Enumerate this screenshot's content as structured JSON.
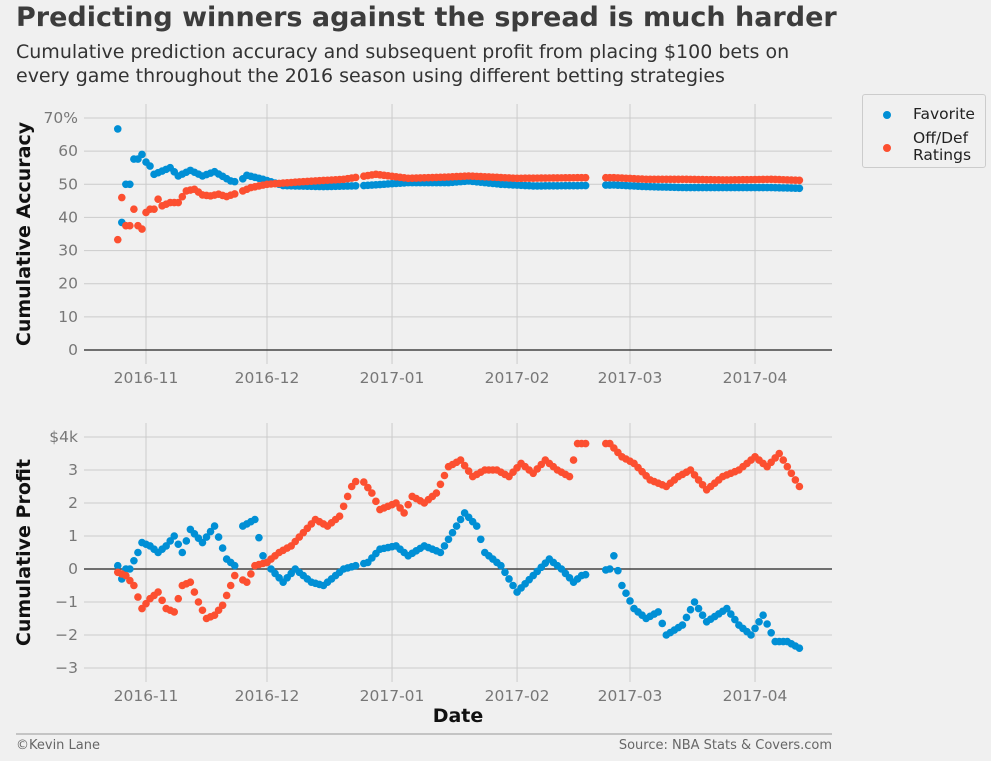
{
  "title": "Predicting winners against the spread is much harder",
  "subtitle": "Cumulative prediction accuracy and subsequent profit from placing $100 bets on every game throughout the 2016 season using different betting strategies",
  "footer": {
    "credit": "©Kevin Lane",
    "source": "Source: NBA Stats & Covers.com"
  },
  "colors": {
    "favorite": "#008fd5",
    "offdef": "#fc4f30",
    "grid": "#cbcbcb",
    "background": "#f0f0f0"
  },
  "legend": {
    "favorite": "Favorite",
    "offdef_line1": "Off/Def",
    "offdef_line2": "Ratings"
  },
  "chart_data": [
    {
      "type": "scatter",
      "ylabel": "Cumulative Accuracy",
      "ylim": [
        0,
        70
      ],
      "yticks": [
        "0",
        "10",
        "20",
        "30",
        "40",
        "50",
        "60",
        "70%"
      ],
      "xticks": [
        "2016-11",
        "2016-12",
        "2017-01",
        "2017-02",
        "2017-03",
        "2017-04"
      ],
      "grid": true,
      "legend_placement": "outside top-right",
      "series": [
        {
          "name": "Favorite",
          "anchors": [
            [
              "2016-10-25",
              66.7
            ],
            [
              "2016-10-26",
              38.5
            ],
            [
              "2016-10-27",
              50
            ],
            [
              "2016-10-28",
              50
            ],
            [
              "2016-10-29",
              57.6
            ],
            [
              "2016-10-30",
              57.6
            ],
            [
              "2016-10-31",
              59
            ],
            [
              "2016-11-01",
              56.7
            ],
            [
              "2016-11-02",
              55.5
            ],
            [
              "2016-11-03",
              53
            ],
            [
              "2016-11-05",
              54
            ],
            [
              "2016-11-07",
              55
            ],
            [
              "2016-11-09",
              52.5
            ],
            [
              "2016-11-12",
              54.2
            ],
            [
              "2016-11-15",
              52.5
            ],
            [
              "2016-11-18",
              53.8
            ],
            [
              "2016-11-22",
              51
            ],
            [
              "2016-11-24",
              50.6
            ],
            [
              "2016-11-26",
              52.7
            ],
            [
              "2016-11-30",
              51.5
            ],
            [
              "2016-12-05",
              49.6
            ],
            [
              "2016-12-15",
              49.3
            ],
            [
              "2016-12-25",
              49.6
            ],
            [
              "2017-01-05",
              50.5
            ],
            [
              "2017-01-15",
              50.5
            ],
            [
              "2017-01-20",
              51
            ],
            [
              "2017-01-28",
              50
            ],
            [
              "2017-02-05",
              49.5
            ],
            [
              "2017-02-17",
              49.6
            ],
            [
              "2017-02-25",
              49.8
            ],
            [
              "2017-03-05",
              49.3
            ],
            [
              "2017-03-15",
              49
            ],
            [
              "2017-03-25",
              49
            ],
            [
              "2017-04-05",
              49
            ],
            [
              "2017-04-12",
              48.8
            ]
          ]
        },
        {
          "name": "Off/Def Ratings",
          "anchors": [
            [
              "2016-10-25",
              33.3
            ],
            [
              "2016-10-26",
              46
            ],
            [
              "2016-10-27",
              37.5
            ],
            [
              "2016-10-28",
              37.5
            ],
            [
              "2016-10-29",
              42.5
            ],
            [
              "2016-10-30",
              37.5
            ],
            [
              "2016-10-31",
              36.5
            ],
            [
              "2016-11-01",
              41.5
            ],
            [
              "2016-11-02",
              42.5
            ],
            [
              "2016-11-03",
              42.5
            ],
            [
              "2016-11-04",
              45.5
            ],
            [
              "2016-11-05",
              43.5
            ],
            [
              "2016-11-07",
              44.5
            ],
            [
              "2016-11-09",
              44.5
            ],
            [
              "2016-11-11",
              48
            ],
            [
              "2016-11-13",
              48.5
            ],
            [
              "2016-11-15",
              46.8
            ],
            [
              "2016-11-17",
              46.5
            ],
            [
              "2016-11-19",
              47
            ],
            [
              "2016-11-21",
              46.3
            ],
            [
              "2016-11-24",
              47.5
            ],
            [
              "2016-11-27",
              49
            ],
            [
              "2016-12-01",
              50
            ],
            [
              "2016-12-10",
              50.8
            ],
            [
              "2016-12-20",
              51.5
            ],
            [
              "2016-12-28",
              53
            ],
            [
              "2017-01-05",
              51.8
            ],
            [
              "2017-01-15",
              52.2
            ],
            [
              "2017-01-20",
              52.5
            ],
            [
              "2017-02-01",
              51.8
            ],
            [
              "2017-02-17",
              52
            ],
            [
              "2017-02-25",
              52
            ],
            [
              "2017-03-05",
              51.5
            ],
            [
              "2017-03-15",
              51.5
            ],
            [
              "2017-03-25",
              51.3
            ],
            [
              "2017-04-05",
              51.5
            ],
            [
              "2017-04-12",
              51.2
            ]
          ]
        }
      ]
    },
    {
      "type": "scatter",
      "xlabel": "Date",
      "ylabel": "Cumulative Profit",
      "ylim": [
        -3.4,
        4.5
      ],
      "yticks": [
        "−3",
        "−2",
        "−1",
        "0",
        "1",
        "2",
        "3",
        "$4k"
      ],
      "xticks": [
        "2016-11",
        "2016-12",
        "2017-01",
        "2017-02",
        "2017-03",
        "2017-04"
      ],
      "grid": true,
      "series": [
        {
          "name": "Favorite",
          "anchors": [
            [
              "2016-10-25",
              0.1
            ],
            [
              "2016-10-26",
              -0.3
            ],
            [
              "2016-10-27",
              0
            ],
            [
              "2016-10-28",
              0
            ],
            [
              "2016-10-30",
              0.5
            ],
            [
              "2016-10-31",
              0.8
            ],
            [
              "2016-11-02",
              0.7
            ],
            [
              "2016-11-04",
              0.5
            ],
            [
              "2016-11-06",
              0.7
            ],
            [
              "2016-11-08",
              1
            ],
            [
              "2016-11-10",
              0.5
            ],
            [
              "2016-11-12",
              1.2
            ],
            [
              "2016-11-15",
              0.8
            ],
            [
              "2016-11-18",
              1.3
            ],
            [
              "2016-11-21",
              0.3
            ],
            [
              "2016-11-23",
              0.1
            ],
            [
              "2016-11-25",
              1.3
            ],
            [
              "2016-11-28",
              1.5
            ],
            [
              "2016-11-30",
              0.4
            ],
            [
              "2016-12-02",
              0
            ],
            [
              "2016-12-05",
              -0.4
            ],
            [
              "2016-12-08",
              0
            ],
            [
              "2016-12-12",
              -0.4
            ],
            [
              "2016-12-15",
              -0.5
            ],
            [
              "2016-12-20",
              0
            ],
            [
              "2016-12-26",
              0.2
            ],
            [
              "2016-12-29",
              0.6
            ],
            [
              "2017-01-02",
              0.7
            ],
            [
              "2017-01-05",
              0.4
            ],
            [
              "2017-01-09",
              0.7
            ],
            [
              "2017-01-13",
              0.5
            ],
            [
              "2017-01-16",
              1.1
            ],
            [
              "2017-01-19",
              1.7
            ],
            [
              "2017-01-22",
              1.3
            ],
            [
              "2017-01-24",
              0.5
            ],
            [
              "2017-01-28",
              0.1
            ],
            [
              "2017-02-01",
              -0.7
            ],
            [
              "2017-02-05",
              -0.2
            ],
            [
              "2017-02-09",
              0.3
            ],
            [
              "2017-02-12",
              0
            ],
            [
              "2017-02-15",
              -0.4
            ],
            [
              "2017-02-17",
              -0.2
            ],
            [
              "2017-02-24",
              0
            ],
            [
              "2017-02-25",
              0.4
            ],
            [
              "2017-02-27",
              -0.5
            ],
            [
              "2017-03-02",
              -1.2
            ],
            [
              "2017-03-05",
              -1.5
            ],
            [
              "2017-03-08",
              -1.3
            ],
            [
              "2017-03-10",
              -2
            ],
            [
              "2017-03-14",
              -1.7
            ],
            [
              "2017-03-17",
              -1
            ],
            [
              "2017-03-20",
              -1.6
            ],
            [
              "2017-03-25",
              -1.2
            ],
            [
              "2017-03-28",
              -1.7
            ],
            [
              "2017-03-31",
              -2
            ],
            [
              "2017-04-03",
              -1.4
            ],
            [
              "2017-04-06",
              -2.2
            ],
            [
              "2017-04-09",
              -2.2
            ],
            [
              "2017-04-12",
              -2.4
            ]
          ]
        },
        {
          "name": "Off/Def Ratings",
          "anchors": [
            [
              "2016-10-25",
              -0.1
            ],
            [
              "2016-10-27",
              -0.2
            ],
            [
              "2016-10-29",
              -0.5
            ],
            [
              "2016-10-31",
              -1.2
            ],
            [
              "2016-11-02",
              -0.9
            ],
            [
              "2016-11-04",
              -0.7
            ],
            [
              "2016-11-06",
              -1.2
            ],
            [
              "2016-11-08",
              -1.3
            ],
            [
              "2016-11-10",
              -0.5
            ],
            [
              "2016-11-12",
              -0.4
            ],
            [
              "2016-11-14",
              -1
            ],
            [
              "2016-11-16",
              -1.5
            ],
            [
              "2016-11-18",
              -1.4
            ],
            [
              "2016-11-20",
              -1.1
            ],
            [
              "2016-11-23",
              -0.2
            ],
            [
              "2016-11-26",
              -0.4
            ],
            [
              "2016-11-28",
              0.1
            ],
            [
              "2016-12-01",
              0.2
            ],
            [
              "2016-12-04",
              0.5
            ],
            [
              "2016-12-07",
              0.7
            ],
            [
              "2016-12-10",
              1.1
            ],
            [
              "2016-12-13",
              1.5
            ],
            [
              "2016-12-16",
              1.3
            ],
            [
              "2016-12-19",
              1.6
            ],
            [
              "2016-12-22",
              2.5
            ],
            [
              "2016-12-24",
              2.8
            ],
            [
              "2016-12-27",
              2.3
            ],
            [
              "2016-12-29",
              1.8
            ],
            [
              "2017-01-02",
              2
            ],
            [
              "2017-01-04",
              1.7
            ],
            [
              "2017-01-06",
              2.2
            ],
            [
              "2017-01-09",
              2
            ],
            [
              "2017-01-12",
              2.3
            ],
            [
              "2017-01-15",
              3.1
            ],
            [
              "2017-01-18",
              3.3
            ],
            [
              "2017-01-21",
              2.8
            ],
            [
              "2017-01-24",
              3
            ],
            [
              "2017-01-27",
              3
            ],
            [
              "2017-01-30",
              2.8
            ],
            [
              "2017-02-02",
              3.2
            ],
            [
              "2017-02-05",
              2.9
            ],
            [
              "2017-02-08",
              3.3
            ],
            [
              "2017-02-11",
              3
            ],
            [
              "2017-02-14",
              2.8
            ],
            [
              "2017-02-16",
              3.8
            ],
            [
              "2017-02-24",
              3.8
            ],
            [
              "2017-02-27",
              3.4
            ],
            [
              "2017-03-02",
              3.2
            ],
            [
              "2017-03-06",
              2.7
            ],
            [
              "2017-03-10",
              2.5
            ],
            [
              "2017-03-13",
              2.8
            ],
            [
              "2017-03-16",
              3
            ],
            [
              "2017-03-20",
              2.4
            ],
            [
              "2017-03-24",
              2.8
            ],
            [
              "2017-03-28",
              3
            ],
            [
              "2017-04-01",
              3.4
            ],
            [
              "2017-04-04",
              3.1
            ],
            [
              "2017-04-07",
              3.5
            ],
            [
              "2017-04-10",
              2.9
            ],
            [
              "2017-04-12",
              2.5
            ]
          ]
        }
      ]
    }
  ]
}
